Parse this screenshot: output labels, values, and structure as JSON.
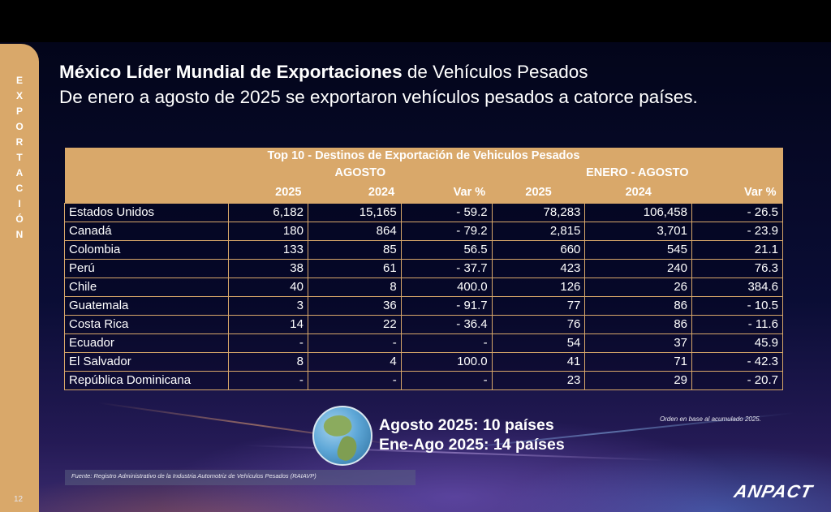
{
  "side_tab": {
    "letters": [
      "E",
      "X",
      "P",
      "O",
      "R",
      "T",
      "A",
      "C",
      "I",
      "Ó",
      "N"
    ]
  },
  "title": {
    "bold": "México Líder Mundial de Exportaciones",
    "normal": " de Vehículos Pesados",
    "subtitle": "De enero a agosto de 2025 se exportaron vehículos pesados a catorce países."
  },
  "table": {
    "title": "Top 10 - Destinos de Exportación de Vehiculos Pesados",
    "group_agosto": "AGOSTO",
    "group_ene_ago": "ENERO - AGOSTO",
    "cols": [
      "2025",
      "2024",
      "Var %",
      "2025",
      "2024",
      "Var %"
    ],
    "rows": [
      {
        "country": "Estados Unidos",
        "v": [
          "6,182",
          "15,165",
          "- 59.2",
          "78,283",
          "106,458",
          "- 26.5"
        ]
      },
      {
        "country": "Canadá",
        "v": [
          "180",
          "864",
          "- 79.2",
          "2,815",
          "3,701",
          "- 23.9"
        ]
      },
      {
        "country": "Colombia",
        "v": [
          "133",
          "85",
          "56.5",
          "660",
          "545",
          "21.1"
        ]
      },
      {
        "country": "Perú",
        "v": [
          "38",
          "61",
          "- 37.7",
          "423",
          "240",
          "76.3"
        ]
      },
      {
        "country": "Chile",
        "v": [
          "40",
          "8",
          "400.0",
          "126",
          "26",
          "384.6"
        ]
      },
      {
        "country": "Guatemala",
        "v": [
          "3",
          "36",
          "- 91.7",
          "77",
          "86",
          "- 10.5"
        ]
      },
      {
        "country": "Costa Rica",
        "v": [
          "14",
          "22",
          "- 36.4",
          "76",
          "86",
          "- 11.6"
        ]
      },
      {
        "country": "Ecuador",
        "v": [
          "-",
          "-",
          "-",
          "54",
          "37",
          "45.9"
        ]
      },
      {
        "country": "El Salvador",
        "v": [
          "8",
          "4",
          "100.0",
          "41",
          "71",
          "- 42.3"
        ]
      },
      {
        "country": "República Dominicana",
        "v": [
          "-",
          "-",
          "-",
          "23",
          "29",
          "- 20.7"
        ]
      }
    ]
  },
  "footnote": "Orden en base al acumulado 2025.",
  "summary": {
    "line1": "Agosto 2025: 10 países",
    "line2": "Ene-Ago 2025: 14 países"
  },
  "source": "Fuente: Registro Administrativo de la Industria Automotriz de Vehículos Pesados (RAIAVP)",
  "page_number": "12",
  "logo": "ANPACT",
  "colors": {
    "accent": "#d9a86a",
    "background": "#0a0d35"
  },
  "icons": {
    "globe": "globe-icon"
  }
}
